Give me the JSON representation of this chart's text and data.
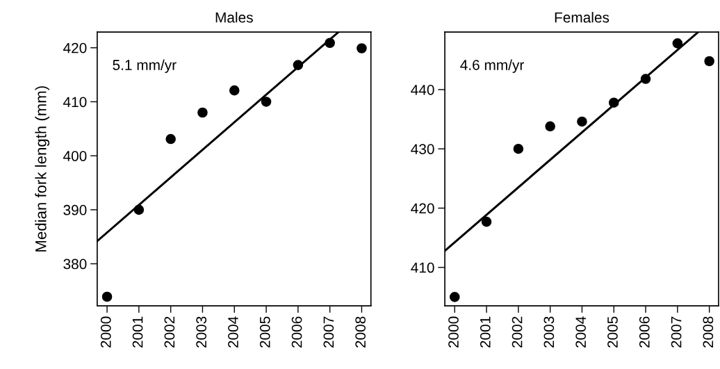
{
  "chart_data": [
    {
      "type": "scatter",
      "title": "Males",
      "ylabel": "Median fork length (mm)",
      "xlim": [
        1999.69,
        2008.29
      ],
      "ylim": [
        372.2,
        422.9
      ],
      "xticks": [
        2000,
        2001,
        2002,
        2003,
        2004,
        2005,
        2006,
        2007,
        2008
      ],
      "yticks": [
        380,
        390,
        400,
        410,
        420
      ],
      "annotations": [
        "5.1 mm/yr"
      ],
      "series": [
        {
          "marker": "circle",
          "color": "#000000",
          "x": [
            2000,
            2001,
            2002,
            2003,
            2004,
            2005,
            2006,
            2007,
            2008
          ],
          "values": [
            373.9,
            390.0,
            403.1,
            408.0,
            412.1,
            410.0,
            416.8,
            420.9,
            419.9
          ]
        },
        {
          "type": "line",
          "marker": "none",
          "color": "#000000",
          "x": [
            1999.69,
            2007.27
          ],
          "values": [
            384.2,
            422.9
          ]
        }
      ]
    },
    {
      "type": "scatter",
      "title": "Females",
      "xlim": [
        1999.69,
        2008.29
      ],
      "ylim": [
        403.5,
        449.7
      ],
      "xticks": [
        2000,
        2001,
        2002,
        2003,
        2004,
        2005,
        2006,
        2007,
        2008
      ],
      "yticks": [
        410,
        420,
        430,
        440
      ],
      "annotations": [
        "4.6 mm/yr"
      ],
      "series": [
        {
          "marker": "circle",
          "color": "#000000",
          "x": [
            2000,
            2001,
            2002,
            2003,
            2004,
            2005,
            2006,
            2007,
            2008
          ],
          "values": [
            405.0,
            417.7,
            430.0,
            433.8,
            434.6,
            437.8,
            441.8,
            447.8,
            444.8
          ]
        },
        {
          "type": "line",
          "marker": "none",
          "color": "#000000",
          "x": [
            1999.69,
            2007.65
          ],
          "values": [
            412.8,
            449.7
          ]
        }
      ]
    }
  ]
}
